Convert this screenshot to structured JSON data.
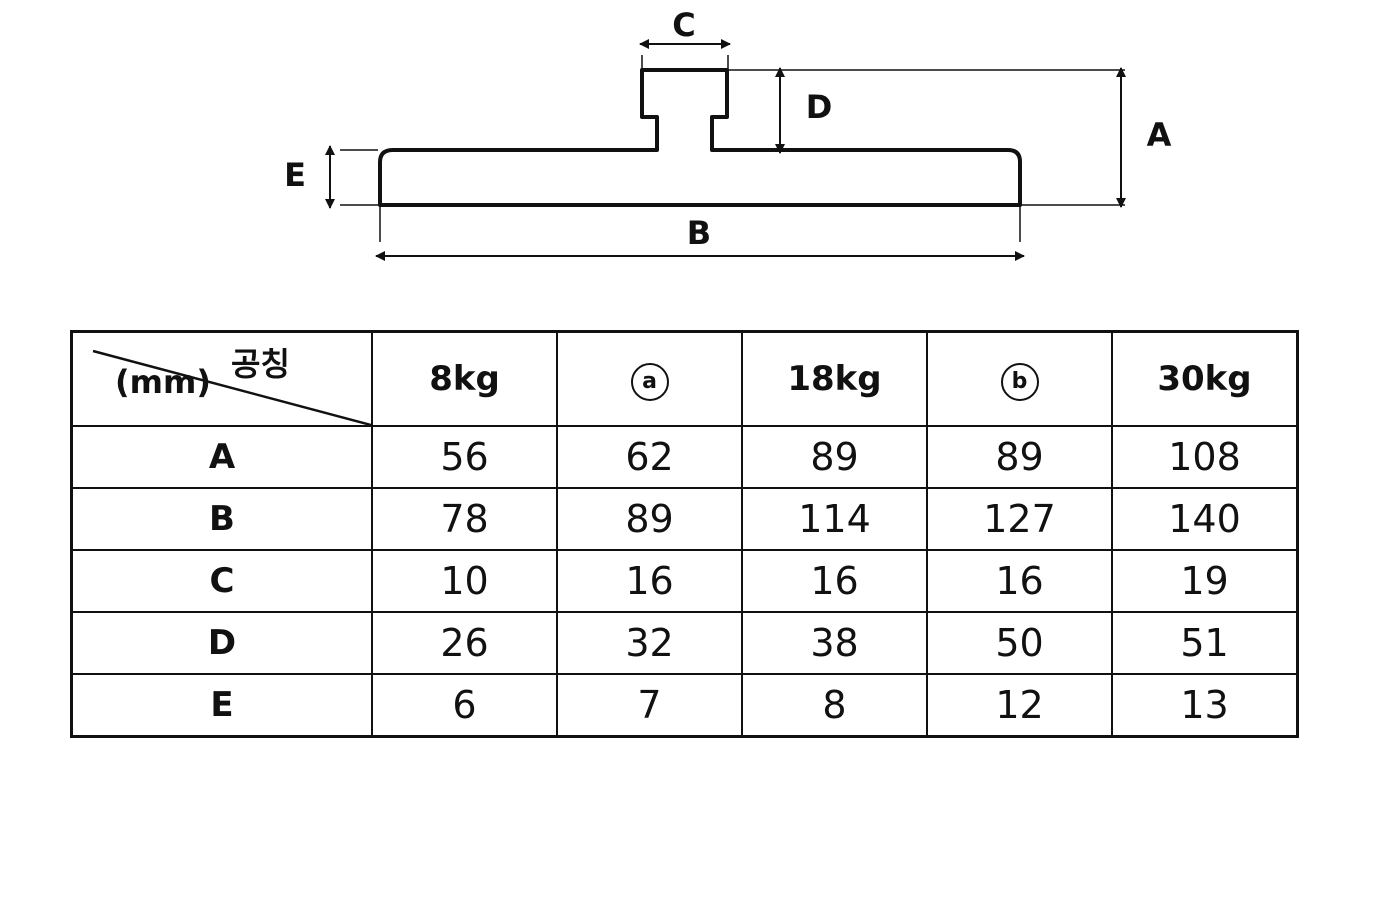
{
  "diagram": {
    "labels": {
      "A": "A",
      "B": "B",
      "C": "C",
      "D": "D",
      "E": "E"
    }
  },
  "table": {
    "corner_top": "공칭",
    "corner_bottom": "(mm)",
    "columns": [
      "8kg",
      "ⓐ",
      "18kg",
      "ⓑ",
      "30kg"
    ],
    "rows": [
      {
        "label": "A",
        "values": [
          "56",
          "62",
          "89",
          "89",
          "108"
        ]
      },
      {
        "label": "B",
        "values": [
          "78",
          "89",
          "114",
          "127",
          "140"
        ]
      },
      {
        "label": "C",
        "values": [
          "10",
          "16",
          "16",
          "16",
          "19"
        ]
      },
      {
        "label": "D",
        "values": [
          "26",
          "32",
          "38",
          "50",
          "51"
        ]
      },
      {
        "label": "E",
        "values": [
          "6",
          "7",
          "8",
          "12",
          "13"
        ]
      }
    ]
  }
}
